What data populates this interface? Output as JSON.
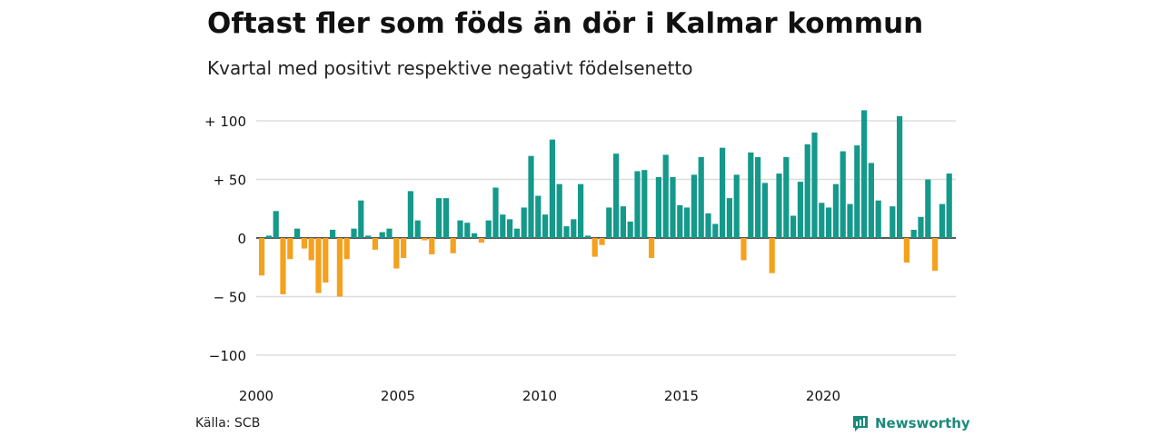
{
  "title": "Oftast fler som föds än dör i Kalmar kommun",
  "subtitle": "Kvartal med positivt respektive negativt födelsenetto",
  "source": "Källa: SCB",
  "brand": "Newsworthy",
  "colors": {
    "positive": "#14998a",
    "negative": "#f4a11e",
    "grid": "#dddddd",
    "brand": "#1a8a7a"
  },
  "chart_data": {
    "type": "bar",
    "x_start": "2000 Q1",
    "period": "quarter",
    "ylim": [
      -100,
      110
    ],
    "yticks": [
      100,
      50,
      0,
      -50,
      -100
    ],
    "ytick_labels": [
      "+ 100",
      "+  50",
      "0",
      "− 50",
      "−100"
    ],
    "xticks": [
      "2000",
      "2005",
      "2010",
      "2015",
      "2020"
    ],
    "grid": true,
    "values": [
      -32,
      2,
      23,
      -48,
      -18,
      8,
      -9,
      -19,
      -47,
      -38,
      7,
      -50,
      -18,
      8,
      32,
      2,
      -10,
      5,
      8,
      -26,
      -17,
      40,
      15,
      -2,
      -14,
      34,
      34,
      -13,
      15,
      13,
      4,
      -4,
      15,
      43,
      20,
      16,
      8,
      26,
      70,
      36,
      20,
      84,
      46,
      10,
      16,
      46,
      2,
      -16,
      -6,
      26,
      72,
      27,
      14,
      57,
      58,
      -17,
      52,
      71,
      52,
      28,
      26,
      54,
      69,
      21,
      12,
      77,
      34,
      54,
      -19,
      73,
      69,
      47,
      -30,
      55,
      69,
      19,
      48,
      80,
      90,
      30,
      26,
      46,
      74,
      29,
      79,
      109,
      64,
      32,
      0,
      27,
      104,
      -21,
      7,
      18,
      50,
      -28,
      29,
      55
    ]
  }
}
